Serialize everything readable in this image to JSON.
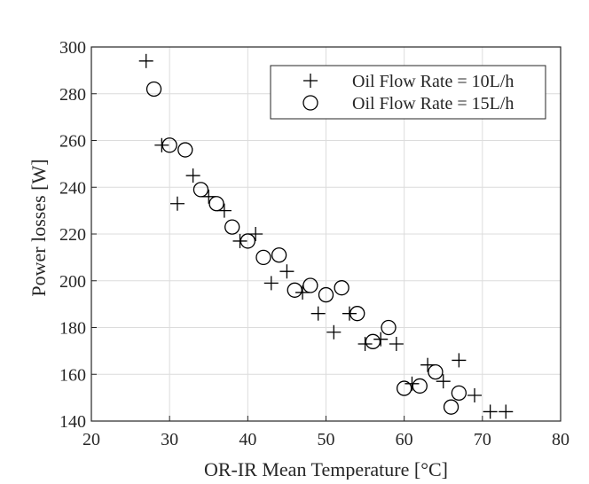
{
  "chart_data": {
    "type": "scatter",
    "title": "",
    "xlabel": "OR-IR Mean Temperature [°C]",
    "ylabel": "Power losses [W]",
    "xlim": [
      20,
      80
    ],
    "ylim": [
      140,
      300
    ],
    "xticks": [
      20,
      30,
      40,
      50,
      60,
      70,
      80
    ],
    "yticks": [
      140,
      160,
      180,
      200,
      220,
      240,
      260,
      280,
      300
    ],
    "grid": true,
    "legend_position": "top-right",
    "series": [
      {
        "name": "Oil Flow Rate = 10L/h",
        "marker": "plus",
        "color": "#000000",
        "x": [
          27,
          29,
          31,
          33,
          35,
          37,
          39,
          41,
          43,
          45,
          47,
          49,
          51,
          53,
          55,
          57,
          59,
          61,
          63,
          65,
          67,
          69,
          71,
          73
        ],
        "y": [
          294,
          258,
          233,
          245,
          236,
          230,
          217,
          220,
          199,
          204,
          195,
          186,
          178,
          186,
          173,
          175,
          173,
          156,
          164,
          157,
          166,
          151,
          144,
          144
        ]
      },
      {
        "name": "Oil Flow Rate = 15L/h",
        "marker": "circle",
        "color": "#000000",
        "x": [
          28,
          30,
          32,
          34,
          36,
          38,
          40,
          42,
          44,
          46,
          48,
          50,
          52,
          54,
          56,
          58,
          60,
          62,
          64,
          66,
          67
        ],
        "y": [
          282,
          258,
          256,
          239,
          233,
          223,
          217,
          210,
          211,
          196,
          198,
          194,
          197,
          186,
          174,
          180,
          154,
          155,
          161,
          146,
          152
        ]
      }
    ]
  }
}
